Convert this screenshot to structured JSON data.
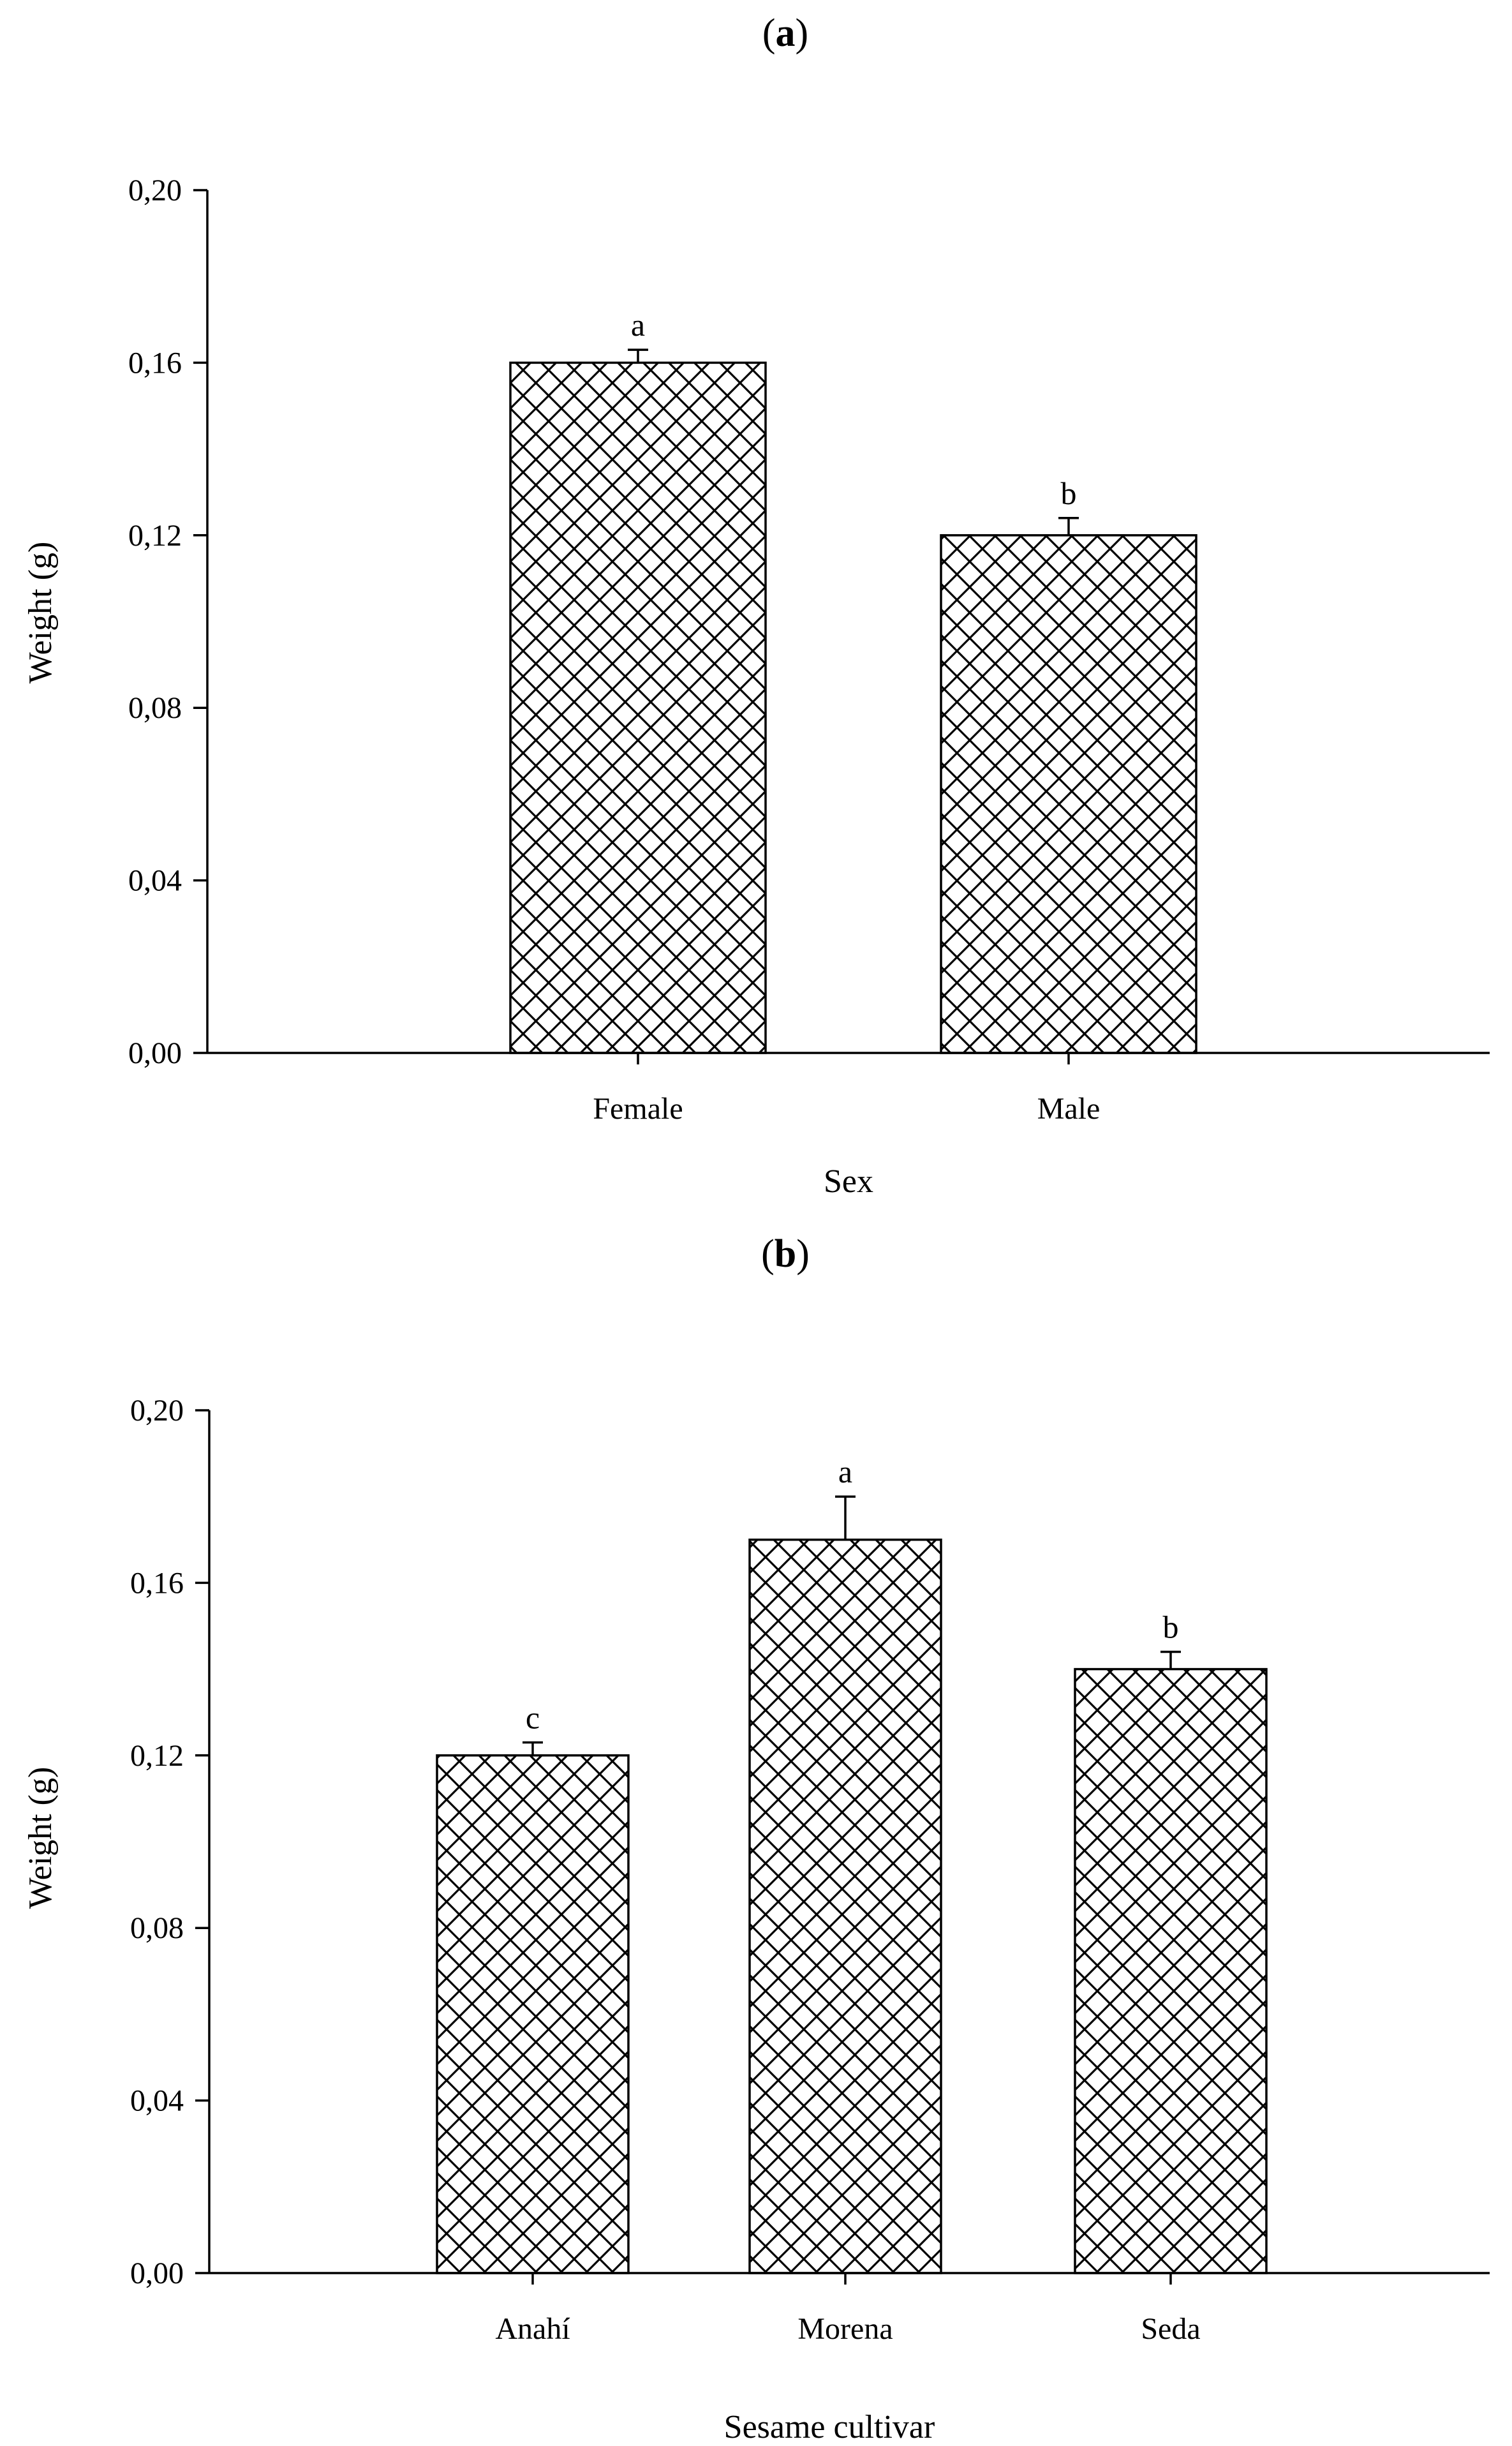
{
  "chart_data": [
    {
      "type": "bar",
      "panel_label": "(a)",
      "panel_open": "(",
      "panel_letter": "a",
      "panel_close": ")",
      "categories": [
        "Female",
        "Male"
      ],
      "values": [
        0.16,
        0.12
      ],
      "errors": [
        0.003,
        0.004
      ],
      "significance": [
        "a",
        "b"
      ],
      "xlabel": "Sex",
      "ylabel": "Weight (g)",
      "ylim": [
        0,
        0.2
      ],
      "yticks": [
        0,
        0.04,
        0.08,
        0.12,
        0.16,
        0.2
      ],
      "ytick_labels": [
        "0,00",
        "0,04",
        "0,08",
        "0,12",
        "0,16",
        "0,20"
      ],
      "grid": false,
      "fill_pattern": "crosshatch"
    },
    {
      "type": "bar",
      "panel_label": "(b)",
      "panel_open": "(",
      "panel_letter": "b",
      "panel_close": ")",
      "categories": [
        "Anahí",
        "Morena",
        "Seda"
      ],
      "values": [
        0.12,
        0.17,
        0.14
      ],
      "errors": [
        0.003,
        0.01,
        0.004
      ],
      "significance": [
        "c",
        "a",
        "b"
      ],
      "xlabel": "Sesame cultivar",
      "ylabel": "Weight (g)",
      "ylim": [
        0,
        0.2
      ],
      "yticks": [
        0,
        0.04,
        0.08,
        0.12,
        0.16,
        0.2
      ],
      "ytick_labels": [
        "0,00",
        "0,04",
        "0,08",
        "0,12",
        "0,16",
        "0,20"
      ],
      "grid": false,
      "fill_pattern": "crosshatch"
    }
  ],
  "colors": {
    "axis": "#000000",
    "bar_fill": "#ffffff",
    "hatch": "#000000"
  }
}
